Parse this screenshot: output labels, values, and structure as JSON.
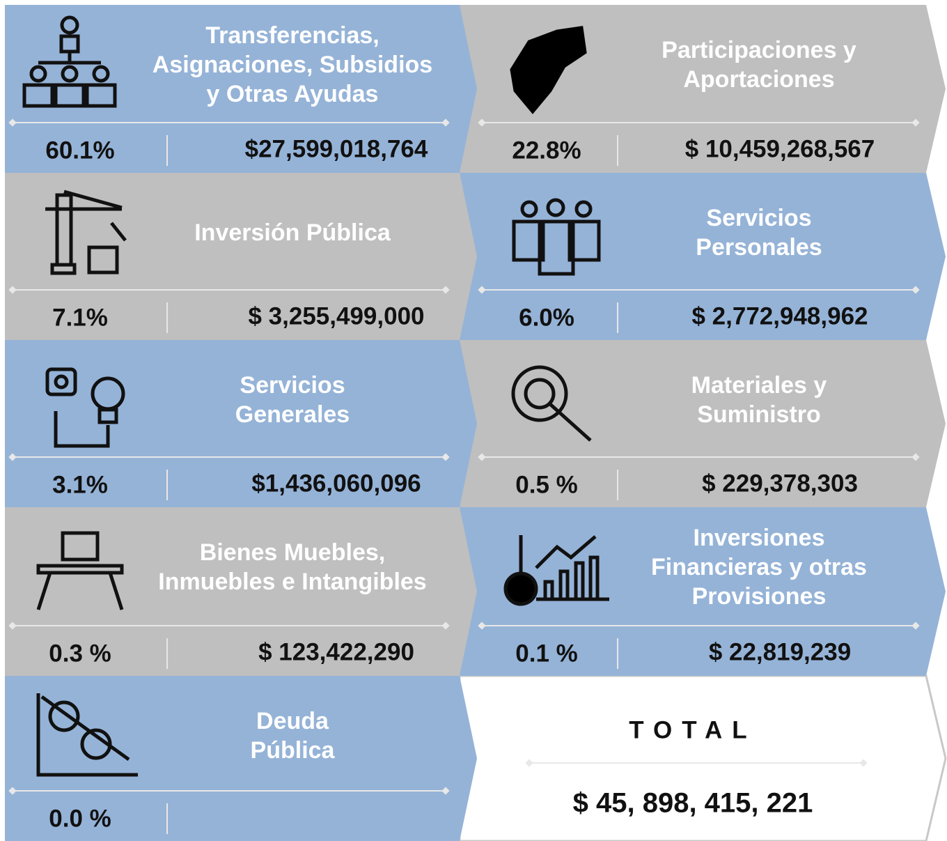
{
  "tiles": [
    {
      "title": [
        "Transferencias,",
        "Asignaciones, Subsidios",
        "y Otras Ayudas"
      ],
      "percent": "60.1%",
      "amount": "$27,599,018,764"
    },
    {
      "title": [
        "Participaciones y",
        "Aportaciones"
      ],
      "percent": "22.8%",
      "amount": "$ 10,459,268,567"
    },
    {
      "title": [
        "Inversión Pública"
      ],
      "percent": "7.1%",
      "amount": "$ 3,255,499,000"
    },
    {
      "title": [
        "Servicios",
        "Personales"
      ],
      "percent": "6.0%",
      "amount": "$ 2,772,948,962"
    },
    {
      "title": [
        "Servicios",
        "Generales"
      ],
      "percent": "3.1%",
      "amount": "$1,436,060,096"
    },
    {
      "title": [
        "Materiales y",
        "Suministro"
      ],
      "percent": "0.5 %",
      "amount": "$ 229,378,303"
    },
    {
      "title": [
        "Bienes Muebles,",
        "Inmuebles e Intangibles"
      ],
      "percent": "0.3 %",
      "amount": "$ 123,422,290"
    },
    {
      "title": [
        "Inversiones",
        "Financieras y otras",
        "Provisiones"
      ],
      "percent": "0.1 %",
      "amount": "$ 22,819,239"
    },
    {
      "title": [
        "Deuda",
        "Pública"
      ],
      "percent": "0.0 %"
    }
  ],
  "total": {
    "label": "TOTAL",
    "amount": "$ 45, 898, 415, 221"
  }
}
